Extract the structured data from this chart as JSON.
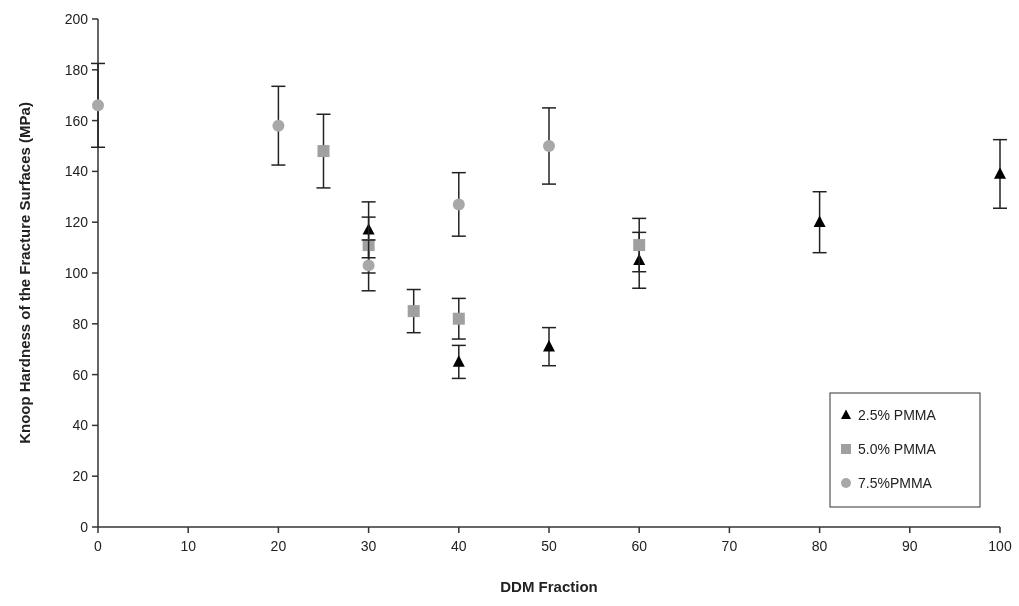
{
  "chart_data": {
    "type": "scatter",
    "xlabel": "DDM Fraction",
    "ylabel": "Knoop Hardness of the Fracture Surfaces (MPa)",
    "xlim": [
      0,
      100
    ],
    "xticks": [
      0,
      10,
      20,
      30,
      40,
      50,
      60,
      70,
      80,
      90,
      100
    ],
    "ylim": [
      0,
      200
    ],
    "yticks": [
      0,
      20,
      40,
      60,
      80,
      100,
      120,
      140,
      160,
      180,
      200
    ],
    "grid": false,
    "legend": "bottom right",
    "series": [
      {
        "name": "2.5% PMMA",
        "color": "#000000",
        "marker": "triangle",
        "x": [
          30,
          40,
          50,
          60,
          80,
          100
        ],
        "values": [
          117,
          65,
          71,
          105,
          120,
          139
        ],
        "errors": [
          11,
          6.5,
          7.5,
          11,
          12,
          13.5
        ]
      },
      {
        "name": "5.0% PMMA",
        "color": "#a0a0a0",
        "marker": "square",
        "x": [
          25,
          30,
          35,
          40,
          60
        ],
        "values": [
          148,
          111,
          85,
          82,
          111
        ],
        "errors": [
          14.5,
          11,
          8.5,
          8,
          10.5
        ]
      },
      {
        "name": "7.5%PMMA",
        "color": "#a8a8a8",
        "marker": "circle",
        "x": [
          0,
          20,
          30,
          40,
          50
        ],
        "values": [
          166,
          158,
          103,
          127,
          150
        ],
        "errors": [
          16.5,
          15.5,
          10,
          12.5,
          15
        ]
      }
    ]
  }
}
